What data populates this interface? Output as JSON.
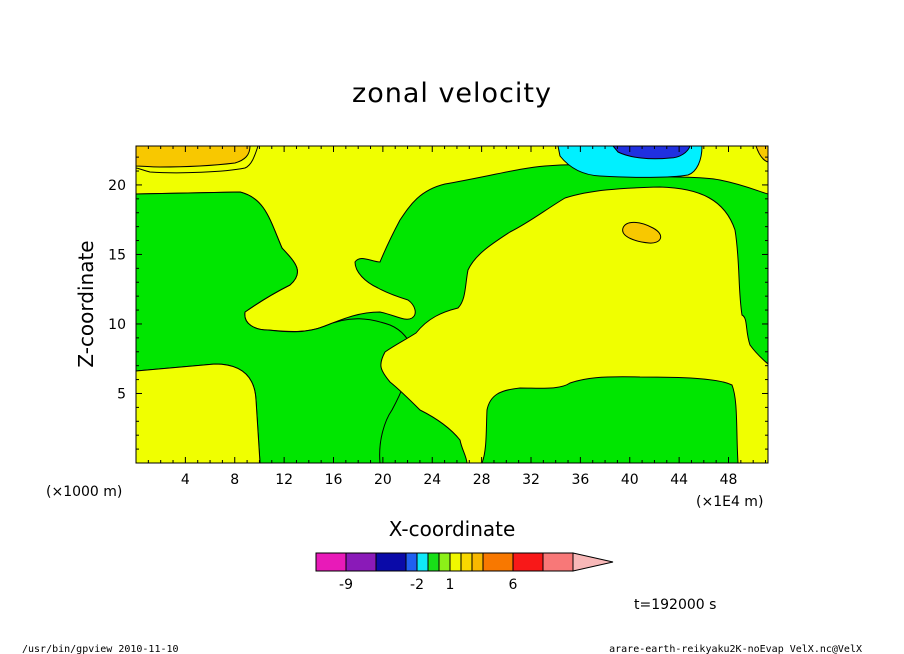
{
  "chart_data": {
    "type": "heatmap",
    "title": "zonal velocity",
    "xlabel": "X-coordinate",
    "ylabel": "Z-coordinate",
    "x_multiplier_left": "(×1000 m)",
    "x_multiplier_right": "(×1E4 m)",
    "xlim": [
      0,
      51.2
    ],
    "ylim": [
      0,
      22.8
    ],
    "x_ticks": [
      4,
      8,
      12,
      16,
      20,
      24,
      28,
      32,
      36,
      40,
      44,
      48
    ],
    "y_ticks": [
      5,
      10,
      15,
      20
    ],
    "time_label": "t=192000 s",
    "colorbar": {
      "tick_labels": [
        "-9",
        "-2",
        "1",
        "6"
      ],
      "levels": [
        -11,
        -9,
        -7,
        -4,
        -2,
        -1,
        0,
        1,
        2,
        3,
        4,
        6,
        8,
        10
      ],
      "colors": [
        "#e81ab8",
        "#8a1ab8",
        "#0a0aa8",
        "#2060f0",
        "#10e8f8",
        "#18e018",
        "#8cf018",
        "#f0f800",
        "#f8d800",
        "#f8b800",
        "#f87800",
        "#f81818",
        "#f87878",
        "#f8b8b8"
      ]
    },
    "regions": [
      {
        "name": "green-background",
        "value_range": [
          0,
          1
        ],
        "color": "#00e600"
      },
      {
        "name": "yellow-lower-left",
        "value_range": [
          1,
          2
        ],
        "color": "#f0ff00"
      },
      {
        "name": "yellow-middle-tongue",
        "value_range": [
          1,
          2
        ],
        "color": "#f0ff00"
      },
      {
        "name": "yellow-right-large",
        "value_range": [
          1,
          2
        ],
        "color": "#f0ff00"
      },
      {
        "name": "yellow-top-left",
        "value_range": [
          1,
          2
        ],
        "color": "#f0ff00"
      },
      {
        "name": "orange-top-left",
        "value_range": [
          2,
          3
        ],
        "color": "#f8c800"
      },
      {
        "name": "orange-top-right",
        "value_range": [
          2,
          3
        ],
        "color": "#f8c800"
      },
      {
        "name": "orange-blob",
        "value_range": [
          2,
          3
        ],
        "color": "#f8c800"
      },
      {
        "name": "cyan-top",
        "value_range": [
          -2,
          -1
        ],
        "color": "#00f0ff"
      },
      {
        "name": "blue-top",
        "value_range": [
          -4,
          -2
        ],
        "color": "#2030e0"
      }
    ]
  },
  "footer": {
    "left": "/usr/bin/gpview  2010-11-10",
    "right": "arare-earth-reikyaku2K-noEvap_VelX.nc@VelX"
  }
}
